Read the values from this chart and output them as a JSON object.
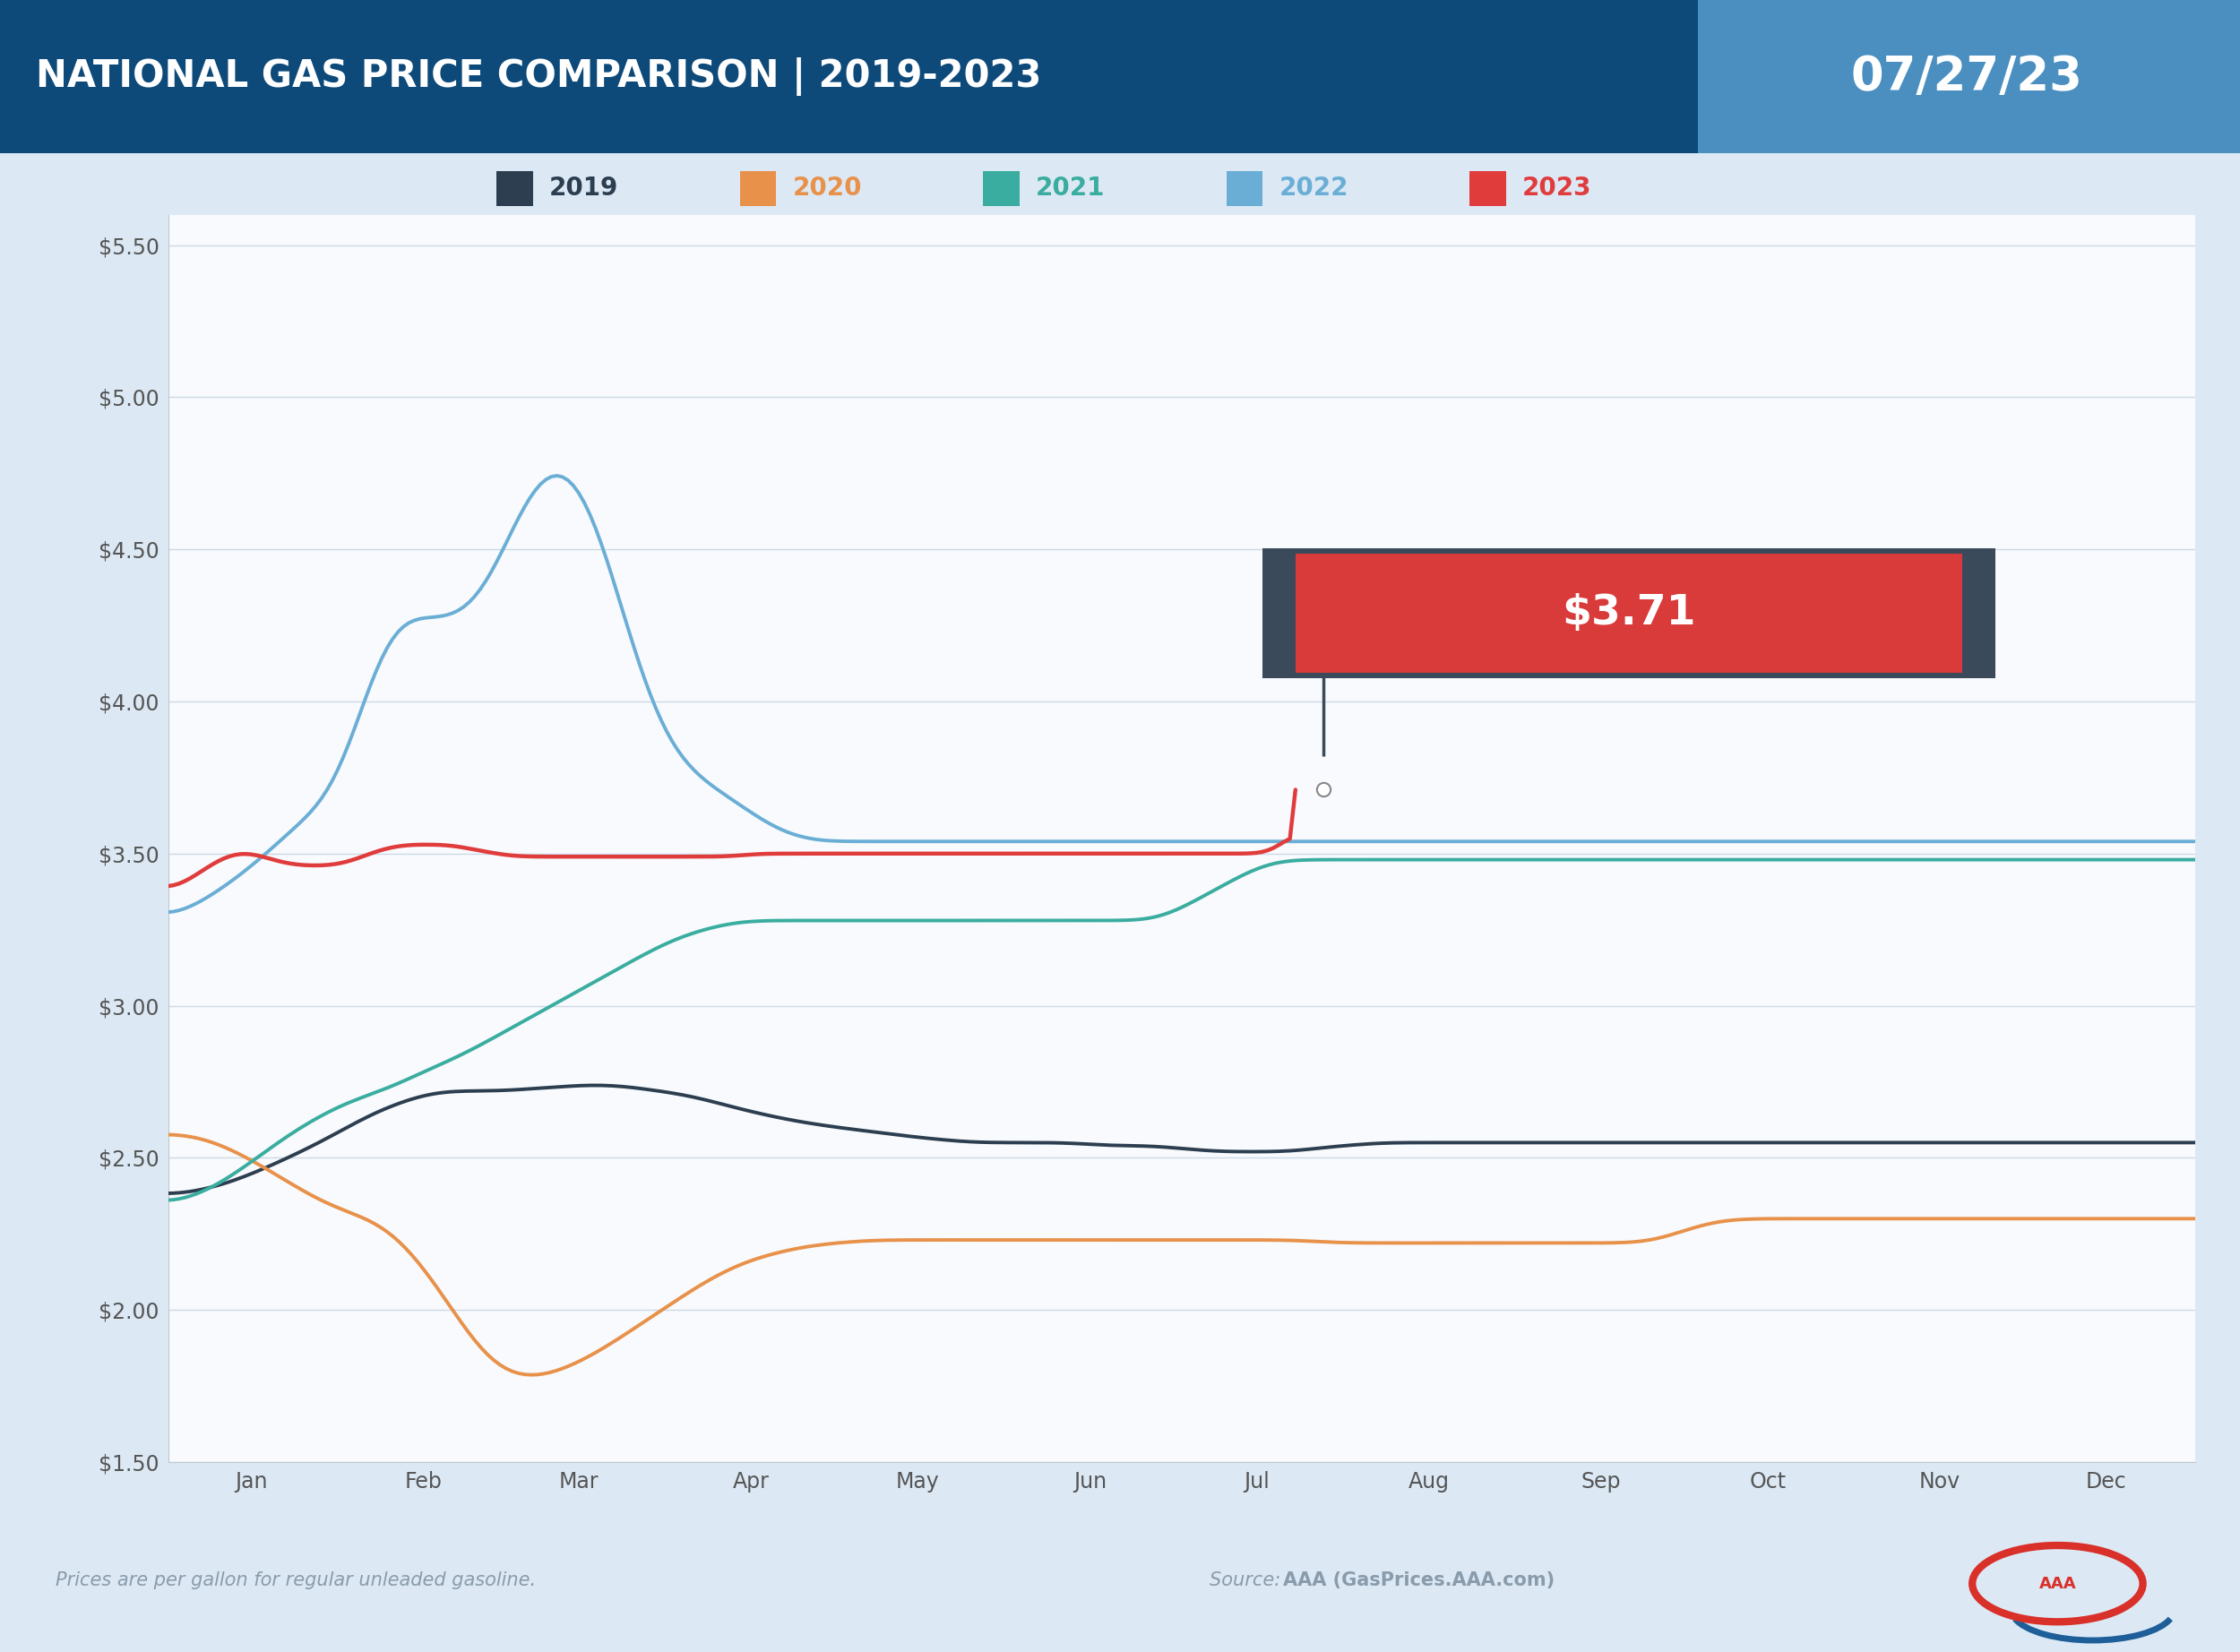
{
  "title_left": "NATIONAL GAS PRICE COMPARISON | 2019-2023",
  "title_right": "07/27/23",
  "title_bg_left": "#0d4a7a",
  "title_bg_right": "#4a8fc0",
  "bg_color": "#dce9f5",
  "chart_bg": "#f8fafd",
  "footer_left": "Prices are per gallon for regular unleaded gasoline.",
  "footer_source_label": "Source: ",
  "footer_source_bold": "AAA (GasPrices.AAA.com)",
  "footer_color": "#8a9bab",
  "annotation_value": "$3.71",
  "annotation_bg": "#d93a3a",
  "annotation_border": "#3a4a5a",
  "ann_day": 208,
  "ann_price": 3.71,
  "ylim_low": 1.5,
  "ylim_high": 5.6,
  "ytick_vals": [
    1.5,
    2.0,
    2.5,
    3.0,
    3.5,
    4.0,
    4.5,
    5.0,
    5.5
  ],
  "month_labels": [
    "Jan",
    "Feb",
    "Mar",
    "Apr",
    "May",
    "Jun",
    "Jul",
    "Aug",
    "Sep",
    "Oct",
    "Nov",
    "Dec"
  ],
  "month_day_starts": [
    15,
    46,
    74,
    105,
    135,
    166,
    196,
    227,
    258,
    288,
    319,
    349
  ],
  "grid_color": "#ccd8e5",
  "legend_years": [
    "2019",
    "2020",
    "2021",
    "2022",
    "2023"
  ],
  "legend_colors": [
    "#2c3e50",
    "#e8914a",
    "#3aada0",
    "#6aaed6",
    "#e03c3c"
  ],
  "y2019": [
    2.38,
    2.38,
    2.38,
    2.38,
    2.38,
    2.39,
    2.39,
    2.4,
    2.4,
    2.41,
    2.41,
    2.41,
    2.42,
    2.43,
    2.44,
    2.44,
    2.45,
    2.46,
    2.47,
    2.47,
    2.48,
    2.49,
    2.5,
    2.51,
    2.52,
    2.52,
    2.53,
    2.54,
    2.55,
    2.56,
    2.57,
    2.58,
    2.59,
    2.6,
    2.61,
    2.62,
    2.63,
    2.64,
    2.65,
    2.66,
    2.66,
    2.67,
    2.68,
    2.68,
    2.69,
    2.7,
    2.7,
    2.71,
    2.71,
    2.72,
    2.72,
    2.72,
    2.72,
    2.72,
    2.72,
    2.72,
    2.72,
    2.72,
    2.72,
    2.72,
    2.72,
    2.72,
    2.72,
    2.72,
    2.72,
    2.72,
    2.73,
    2.73,
    2.73,
    2.73,
    2.73,
    2.73,
    2.73,
    2.73,
    2.74,
    2.74,
    2.74,
    2.74,
    2.74,
    2.74,
    2.74,
    2.74,
    2.74,
    2.74,
    2.74,
    2.73,
    2.73,
    2.73,
    2.73,
    2.72,
    2.72,
    2.72,
    2.72,
    2.71,
    2.71,
    2.71,
    2.71,
    2.7,
    2.7,
    2.69,
    2.69,
    2.68,
    2.68,
    2.67,
    2.67,
    2.66,
    2.66,
    2.65,
    2.65,
    2.65,
    2.64,
    2.64,
    2.63,
    2.63,
    2.63,
    2.62,
    2.62,
    2.62,
    2.61,
    2.61,
    2.61,
    2.61,
    2.6,
    2.6,
    2.6,
    2.6,
    2.59,
    2.59,
    2.59,
    2.59,
    2.59,
    2.58,
    2.58,
    2.58,
    2.58,
    2.57,
    2.57,
    2.57,
    2.57,
    2.57,
    2.56,
    2.56,
    2.56,
    2.56,
    2.56,
    2.56,
    2.55,
    2.55,
    2.55,
    2.55,
    2.55,
    2.55,
    2.55,
    2.55,
    2.55,
    2.55,
    2.55,
    2.55,
    2.55,
    2.55,
    2.55,
    2.55,
    2.55,
    2.55,
    2.55,
    2.55,
    2.55,
    2.55,
    2.55,
    2.55,
    2.54,
    2.54,
    2.54,
    2.54,
    2.54,
    2.54,
    2.54,
    2.54,
    2.54,
    2.54,
    2.54,
    2.54,
    2.54,
    2.54,
    2.54,
    2.53,
    2.53,
    2.53,
    2.53,
    2.53,
    2.53,
    2.52,
    2.52,
    2.52,
    2.52,
    2.52,
    2.52,
    2.52,
    2.52,
    2.52,
    2.52,
    2.52,
    2.52,
    2.52,
    2.52,
    2.52,
    2.52,
    2.52,
    2.52,
    2.52,
    2.53,
    2.53,
    2.53,
    2.53,
    2.54,
    2.54,
    2.54,
    2.54,
    2.54,
    2.54,
    2.54,
    2.55,
    2.55,
    2.55,
    2.55,
    2.55,
    2.55,
    2.55,
    2.55,
    2.55,
    2.55,
    2.55,
    2.55,
    2.55,
    2.55,
    2.55,
    2.55,
    2.55,
    2.55,
    2.55,
    2.55,
    2.55,
    2.55,
    2.55,
    2.55,
    2.55,
    2.55,
    2.55,
    2.55,
    2.55,
    2.55,
    2.55,
    2.55,
    2.55,
    2.55,
    2.55,
    2.55,
    2.55,
    2.55,
    2.55,
    2.55,
    2.55,
    2.55,
    2.55,
    2.55,
    2.55,
    2.55,
    2.55,
    2.55,
    2.55,
    2.55,
    2.55,
    2.55,
    2.55,
    2.55,
    2.55,
    2.55,
    2.55,
    2.55,
    2.55,
    2.55,
    2.55,
    2.55,
    2.55,
    2.55,
    2.55,
    2.55,
    2.55,
    2.55,
    2.55,
    2.55,
    2.55,
    2.55,
    2.55,
    2.55,
    2.55,
    2.55,
    2.55,
    2.55,
    2.55,
    2.55,
    2.55,
    2.55,
    2.55,
    2.55,
    2.55,
    2.55,
    2.55,
    2.55,
    2.55,
    2.55,
    2.55,
    2.55,
    2.55,
    2.55,
    2.55,
    2.55,
    2.55,
    2.55,
    2.55,
    2.55,
    2.55,
    2.55,
    2.55,
    2.55,
    2.55,
    2.55,
    2.55,
    2.55,
    2.55,
    2.55,
    2.55,
    2.55,
    2.55,
    2.55,
    2.55,
    2.55,
    2.55,
    2.55,
    2.55,
    2.55,
    2.55,
    2.55,
    2.55,
    2.55,
    2.55,
    2.55,
    2.55,
    2.55,
    2.55,
    2.55,
    2.55,
    2.55,
    2.55,
    2.55,
    2.55,
    2.55,
    2.55,
    2.55,
    2.55,
    2.55,
    2.55,
    2.55,
    2.55,
    2.55,
    2.55,
    2.55,
    2.55,
    2.55,
    2.55,
    2.55,
    2.55,
    2.55,
    2.55,
    2.55
  ],
  "y2020": [
    2.58,
    2.58,
    2.58,
    2.58,
    2.58,
    2.57,
    2.57,
    2.56,
    2.55,
    2.54,
    2.53,
    2.52,
    2.51,
    2.5,
    2.49,
    2.47,
    2.46,
    2.45,
    2.44,
    2.42,
    2.41,
    2.4,
    2.38,
    2.37,
    2.36,
    2.35,
    2.34,
    2.33,
    2.32,
    2.32,
    2.31,
    2.31,
    2.31,
    2.3,
    2.29,
    2.28,
    2.26,
    2.24,
    2.22,
    2.2,
    2.17,
    2.14,
    2.11,
    2.08,
    2.05,
    2.02,
    1.98,
    1.95,
    1.92,
    1.88,
    1.85,
    1.82,
    1.8,
    1.79,
    1.78,
    1.78,
    1.77,
    1.77,
    1.77,
    1.77,
    1.78,
    1.78,
    1.79,
    1.8,
    1.81,
    1.82,
    1.83,
    1.84,
    1.85,
    1.86,
    1.88,
    1.89,
    1.9,
    1.92,
    1.93,
    1.95,
    1.96,
    1.97,
    1.99,
    2.0,
    2.01,
    2.03,
    2.04,
    2.06,
    2.07,
    2.08,
    2.1,
    2.11,
    2.12,
    2.13,
    2.14,
    2.15,
    2.16,
    2.17,
    2.17,
    2.18,
    2.18,
    2.19,
    2.19,
    2.2,
    2.2,
    2.21,
    2.21,
    2.21,
    2.22,
    2.22,
    2.22,
    2.22,
    2.22,
    2.22,
    2.23,
    2.23,
    2.23,
    2.23,
    2.23,
    2.23,
    2.23,
    2.23,
    2.23,
    2.23,
    2.23,
    2.23,
    2.23,
    2.23,
    2.23,
    2.23,
    2.23,
    2.23,
    2.23,
    2.23,
    2.23,
    2.23,
    2.23,
    2.23,
    2.23,
    2.23,
    2.23,
    2.23,
    2.23,
    2.23,
    2.23,
    2.23,
    2.23,
    2.23,
    2.23,
    2.23,
    2.23,
    2.23,
    2.23,
    2.23,
    2.23,
    2.23,
    2.23,
    2.23,
    2.23,
    2.23,
    2.23,
    2.23,
    2.23,
    2.23,
    2.23,
    2.23,
    2.23,
    2.23,
    2.23,
    2.23,
    2.23,
    2.23,
    2.23,
    2.23,
    2.23,
    2.23,
    2.23,
    2.23,
    2.23,
    2.23,
    2.23,
    2.23,
    2.23,
    2.23,
    2.23,
    2.23,
    2.23,
    2.23,
    2.22,
    2.22,
    2.22,
    2.22,
    2.22,
    2.22,
    2.22,
    2.22,
    2.22,
    2.22,
    2.22,
    2.22,
    2.22,
    2.22,
    2.22,
    2.22,
    2.22,
    2.22,
    2.22,
    2.22,
    2.22,
    2.22,
    2.22,
    2.22,
    2.22,
    2.22,
    2.22,
    2.22,
    2.22,
    2.22,
    2.22,
    2.22,
    2.22,
    2.22,
    2.22,
    2.22,
    2.22,
    2.22,
    2.22,
    2.22,
    2.22,
    2.22,
    2.22,
    2.22,
    2.22,
    2.22,
    2.22,
    2.22,
    2.22,
    2.22,
    2.22,
    2.22,
    2.22,
    2.22,
    2.22,
    2.23,
    2.24,
    2.25,
    2.26,
    2.27,
    2.28,
    2.28,
    2.29,
    2.29,
    2.3,
    2.3,
    2.3,
    2.3,
    2.3,
    2.3,
    2.3,
    2.3,
    2.3,
    2.3,
    2.3,
    2.3,
    2.3,
    2.3,
    2.3,
    2.3,
    2.3,
    2.3,
    2.3,
    2.3,
    2.3,
    2.3,
    2.3,
    2.3,
    2.3,
    2.3,
    2.3,
    2.3,
    2.3,
    2.3,
    2.3,
    2.3,
    2.3,
    2.3,
    2.3,
    2.3,
    2.3,
    2.3,
    2.3,
    2.3,
    2.3,
    2.3,
    2.3,
    2.3,
    2.3,
    2.3,
    2.3,
    2.3,
    2.3,
    2.3,
    2.3,
    2.3,
    2.3,
    2.3,
    2.3,
    2.3,
    2.3,
    2.3,
    2.3,
    2.3,
    2.3,
    2.3,
    2.3,
    2.3,
    2.3,
    2.3,
    2.3,
    2.3,
    2.3,
    2.3,
    2.3,
    2.3,
    2.3,
    2.3,
    2.3,
    2.3,
    2.3
  ],
  "y2021": [
    2.35,
    2.35,
    2.35,
    2.36,
    2.37,
    2.37,
    2.38,
    2.39,
    2.4,
    2.41,
    2.42,
    2.43,
    2.44,
    2.46,
    2.47,
    2.48,
    2.5,
    2.51,
    2.52,
    2.54,
    2.55,
    2.56,
    2.58,
    2.59,
    2.6,
    2.61,
    2.62,
    2.63,
    2.64,
    2.65,
    2.66,
    2.67,
    2.68,
    2.69,
    2.69,
    2.7,
    2.7,
    2.71,
    2.71,
    2.72,
    2.73,
    2.73,
    2.74,
    2.75,
    2.76,
    2.77,
    2.78,
    2.79,
    2.79,
    2.8,
    2.81,
    2.82,
    2.82,
    2.83,
    2.84,
    2.85,
    2.86,
    2.87,
    2.88,
    2.89,
    2.9,
    2.91,
    2.92,
    2.93,
    2.94,
    2.95,
    2.96,
    2.97,
    2.98,
    2.99,
    3.0,
    3.01,
    3.02,
    3.03,
    3.04,
    3.05,
    3.06,
    3.07,
    3.08,
    3.09,
    3.1,
    3.11,
    3.12,
    3.13,
    3.14,
    3.15,
    3.16,
    3.17,
    3.18,
    3.19,
    3.2,
    3.21,
    3.22,
    3.22,
    3.23,
    3.24,
    3.24,
    3.25,
    3.25,
    3.26,
    3.26,
    3.27,
    3.27,
    3.27,
    3.28,
    3.28,
    3.28,
    3.28,
    3.28,
    3.28,
    3.28,
    3.28,
    3.28,
    3.28,
    3.28,
    3.28,
    3.28,
    3.28,
    3.28,
    3.28,
    3.28,
    3.28,
    3.28,
    3.28,
    3.28,
    3.28,
    3.28,
    3.28,
    3.28,
    3.28,
    3.28,
    3.28,
    3.28,
    3.28,
    3.28,
    3.28,
    3.28,
    3.28,
    3.28,
    3.28,
    3.28,
    3.28,
    3.28,
    3.28,
    3.28,
    3.28,
    3.28,
    3.28,
    3.28,
    3.28,
    3.28,
    3.28,
    3.28,
    3.28,
    3.28,
    3.28,
    3.28,
    3.28,
    3.28,
    3.28,
    3.28,
    3.28,
    3.28,
    3.28,
    3.28,
    3.28,
    3.28,
    3.28,
    3.28,
    3.28,
    3.28,
    3.28,
    3.28,
    3.28,
    3.28,
    3.28,
    3.28,
    3.28,
    3.28,
    3.28,
    3.28,
    3.28,
    3.29,
    3.3,
    3.31,
    3.32,
    3.33,
    3.34,
    3.35,
    3.36,
    3.37,
    3.38,
    3.39,
    3.4,
    3.41,
    3.42,
    3.43,
    3.44,
    3.45,
    3.46,
    3.47,
    3.47,
    3.48,
    3.48,
    3.48,
    3.48,
    3.48,
    3.48,
    3.48,
    3.48,
    3.48,
    3.48,
    3.48,
    3.48,
    3.48,
    3.48,
    3.48,
    3.48,
    3.48,
    3.48,
    3.48,
    3.48,
    3.48,
    3.48,
    3.48,
    3.48,
    3.48,
    3.48,
    3.48,
    3.48,
    3.48,
    3.48,
    3.48,
    3.48,
    3.48,
    3.48,
    3.48,
    3.48,
    3.48,
    3.48,
    3.48,
    3.48,
    3.48,
    3.48,
    3.48,
    3.48,
    3.48,
    3.48,
    3.48,
    3.48,
    3.48,
    3.48,
    3.48,
    3.48,
    3.48,
    3.48,
    3.48,
    3.48,
    3.48,
    3.48,
    3.48,
    3.48,
    3.48,
    3.48,
    3.48,
    3.48,
    3.48,
    3.48,
    3.48,
    3.48,
    3.48,
    3.48,
    3.48,
    3.48,
    3.48,
    3.48,
    3.48,
    3.48,
    3.48,
    3.48,
    3.48,
    3.48,
    3.48,
    3.48,
    3.48,
    3.48,
    3.48,
    3.48,
    3.48,
    3.48,
    3.48,
    3.48,
    3.48,
    3.48,
    3.48,
    3.48,
    3.48,
    3.48,
    3.48,
    3.48,
    3.48,
    3.48,
    3.48,
    3.48,
    3.48,
    3.48,
    3.48,
    3.48,
    3.48,
    3.48,
    3.48,
    3.48,
    3.48,
    3.48,
    3.48,
    3.48,
    3.48,
    3.48,
    3.48,
    3.48,
    3.48,
    3.48,
    3.48,
    3.48,
    3.48,
    3.48,
    3.48,
    3.48,
    3.48,
    3.48,
    3.48,
    3.48,
    3.48,
    3.48,
    3.48,
    3.48,
    3.48,
    3.48,
    3.48,
    3.48,
    3.48,
    3.48,
    3.48,
    3.48,
    3.48,
    3.48,
    3.48,
    3.48,
    3.48,
    3.48,
    3.48,
    3.48,
    3.48,
    3.48,
    3.48,
    3.48,
    3.48,
    3.48,
    3.48,
    3.48,
    3.48,
    3.48,
    3.48,
    3.48,
    3.48,
    3.48,
    3.48,
    3.48,
    3.48,
    3.48,
    3.48
  ],
  "y2022": [
    3.28,
    3.29,
    3.3,
    3.31,
    3.32,
    3.33,
    3.34,
    3.35,
    3.36,
    3.37,
    3.39,
    3.4,
    3.41,
    3.43,
    3.44,
    3.45,
    3.47,
    3.48,
    3.5,
    3.52,
    3.53,
    3.55,
    3.57,
    3.59,
    3.6,
    3.62,
    3.63,
    3.64,
    3.65,
    3.66,
    3.68,
    3.72,
    3.76,
    3.82,
    3.89,
    3.96,
    4.02,
    4.09,
    4.15,
    4.2,
    4.24,
    4.28,
    4.3,
    4.3,
    4.29,
    4.28,
    4.28,
    4.28,
    4.27,
    4.27,
    4.27,
    4.27,
    4.27,
    4.27,
    4.28,
    4.29,
    4.31,
    4.33,
    4.36,
    4.39,
    4.43,
    4.48,
    4.53,
    4.58,
    4.63,
    4.67,
    4.71,
    4.74,
    4.76,
    4.78,
    4.79,
    4.8,
    4.8,
    4.79,
    4.77,
    4.74,
    4.71,
    4.67,
    4.62,
    4.56,
    4.5,
    4.43,
    4.36,
    4.29,
    4.22,
    4.16,
    4.1,
    4.04,
    3.99,
    3.94,
    3.9,
    3.86,
    3.83,
    3.81,
    3.79,
    3.78,
    3.76,
    3.75,
    3.73,
    3.72,
    3.71,
    3.7,
    3.69,
    3.68,
    3.67,
    3.66,
    3.64,
    3.62,
    3.61,
    3.6,
    3.59,
    3.58,
    3.57,
    3.56,
    3.56,
    3.55,
    3.55,
    3.54,
    3.54,
    3.54,
    3.54,
    3.54,
    3.54,
    3.54,
    3.54,
    3.54,
    3.54,
    3.54,
    3.54,
    3.54,
    3.54,
    3.54,
    3.54,
    3.54,
    3.54,
    3.54,
    3.54,
    3.54,
    3.54,
    3.54,
    3.54,
    3.54,
    3.54,
    3.54,
    3.54,
    3.54,
    3.54,
    3.54,
    3.54,
    3.54,
    3.54,
    3.54,
    3.54,
    3.54,
    3.54,
    3.54,
    3.54,
    3.54,
    3.54,
    3.54,
    3.54,
    3.54,
    3.54,
    3.54,
    3.54,
    3.54,
    3.54,
    3.54,
    3.54,
    3.54,
    3.54,
    3.54,
    3.54,
    3.54,
    3.54,
    3.54,
    3.54,
    3.54,
    3.54,
    3.54,
    3.54,
    3.54,
    3.54,
    3.54,
    3.54,
    3.54,
    3.54,
    3.54,
    3.54,
    3.54,
    3.54,
    3.54,
    3.54,
    3.54,
    3.54,
    3.54,
    3.54,
    3.54,
    3.54,
    3.54,
    3.54,
    3.54,
    3.54,
    3.54,
    3.54,
    3.54,
    3.54,
    3.54,
    3.54,
    3.54,
    3.54,
    3.54,
    3.54,
    3.54,
    3.54,
    3.54,
    3.54,
    3.54,
    3.54,
    3.54,
    3.54,
    3.54,
    3.54,
    3.54,
    3.54,
    3.54,
    3.54,
    3.54,
    3.54,
    3.54,
    3.54,
    3.54,
    3.54,
    3.54,
    3.54,
    3.54,
    3.54,
    3.54,
    3.54,
    3.54,
    3.54,
    3.54,
    3.54,
    3.54,
    3.54,
    3.54,
    3.54,
    3.54,
    3.54,
    3.54,
    3.54,
    3.54,
    3.54,
    3.54,
    3.54,
    3.54,
    3.54,
    3.54,
    3.54,
    3.54,
    3.54,
    3.54,
    3.54,
    3.54,
    3.54,
    3.54,
    3.54,
    3.54,
    3.54,
    3.54,
    3.54,
    3.54,
    3.54,
    3.54,
    3.54,
    3.54,
    3.54,
    3.54,
    3.54,
    3.54,
    3.54,
    3.54,
    3.54,
    3.54,
    3.54,
    3.54,
    3.54,
    3.54,
    3.54,
    3.54,
    3.54,
    3.54,
    3.54,
    3.54,
    3.54,
    3.54,
    3.54,
    3.54,
    3.54,
    3.54,
    3.54,
    3.54,
    3.54,
    3.54,
    3.54,
    3.54,
    3.54,
    3.54,
    3.54,
    3.54,
    3.54,
    3.54,
    3.54,
    3.54,
    3.54,
    3.54,
    3.54,
    3.54,
    3.54,
    3.54,
    3.54,
    3.54,
    3.54,
    3.54,
    3.54,
    3.54,
    3.54,
    3.54,
    3.54,
    3.54,
    3.54,
    3.54,
    3.54,
    3.54,
    3.54,
    3.54,
    3.54,
    3.54,
    3.54,
    3.54,
    3.54,
    3.54,
    3.54,
    3.54,
    3.54,
    3.54,
    3.54,
    3.54,
    3.54,
    3.54,
    3.54,
    3.54,
    3.54,
    3.54,
    3.54,
    3.54,
    3.54,
    3.54,
    3.54,
    3.54,
    3.54,
    3.54,
    3.54,
    3.54,
    3.54,
    3.54,
    3.54,
    3.54,
    3.54,
    3.54,
    3.54
  ],
  "y2023": [
    3.38,
    3.38,
    3.39,
    3.4,
    3.41,
    3.43,
    3.44,
    3.46,
    3.47,
    3.48,
    3.49,
    3.5,
    3.51,
    3.51,
    3.51,
    3.51,
    3.5,
    3.49,
    3.48,
    3.48,
    3.47,
    3.47,
    3.46,
    3.46,
    3.46,
    3.46,
    3.46,
    3.46,
    3.46,
    3.46,
    3.46,
    3.46,
    3.47,
    3.47,
    3.48,
    3.49,
    3.5,
    3.51,
    3.51,
    3.52,
    3.52,
    3.53,
    3.53,
    3.53,
    3.53,
    3.53,
    3.53,
    3.53,
    3.53,
    3.53,
    3.53,
    3.53,
    3.53,
    3.52,
    3.52,
    3.51,
    3.51,
    3.51,
    3.5,
    3.5,
    3.5,
    3.49,
    3.49,
    3.49,
    3.49,
    3.49,
    3.49,
    3.49,
    3.49,
    3.49,
    3.49,
    3.49,
    3.49,
    3.49,
    3.49,
    3.49,
    3.49,
    3.49,
    3.49,
    3.49,
    3.49,
    3.49,
    3.49,
    3.49,
    3.49,
    3.49,
    3.49,
    3.49,
    3.49,
    3.49,
    3.49,
    3.49,
    3.49,
    3.49,
    3.49,
    3.49,
    3.49,
    3.49,
    3.49,
    3.49,
    3.49,
    3.49,
    3.49,
    3.49,
    3.5,
    3.5,
    3.5,
    3.5,
    3.5,
    3.5,
    3.5,
    3.5,
    3.5,
    3.5,
    3.5,
    3.5,
    3.5,
    3.5,
    3.5,
    3.5,
    3.5,
    3.5,
    3.5,
    3.5,
    3.5,
    3.5,
    3.5,
    3.5,
    3.5,
    3.5,
    3.5,
    3.5,
    3.5,
    3.5,
    3.5,
    3.5,
    3.5,
    3.5,
    3.5,
    3.5,
    3.5,
    3.5,
    3.5,
    3.5,
    3.5,
    3.5,
    3.5,
    3.5,
    3.5,
    3.5,
    3.5,
    3.5,
    3.5,
    3.5,
    3.5,
    3.5,
    3.5,
    3.5,
    3.5,
    3.5,
    3.5,
    3.5,
    3.5,
    3.5,
    3.5,
    3.5,
    3.5,
    3.5,
    3.5,
    3.5,
    3.5,
    3.5,
    3.5,
    3.5,
    3.5,
    3.5,
    3.5,
    3.5,
    3.5,
    3.5,
    3.5,
    3.5,
    3.5,
    3.5,
    3.5,
    3.5,
    3.5,
    3.5,
    3.5,
    3.5,
    3.5,
    3.5,
    3.5,
    3.5,
    3.5,
    3.5,
    3.5,
    3.5,
    3.5,
    3.5,
    3.5,
    3.5,
    3.5,
    3.71
  ]
}
